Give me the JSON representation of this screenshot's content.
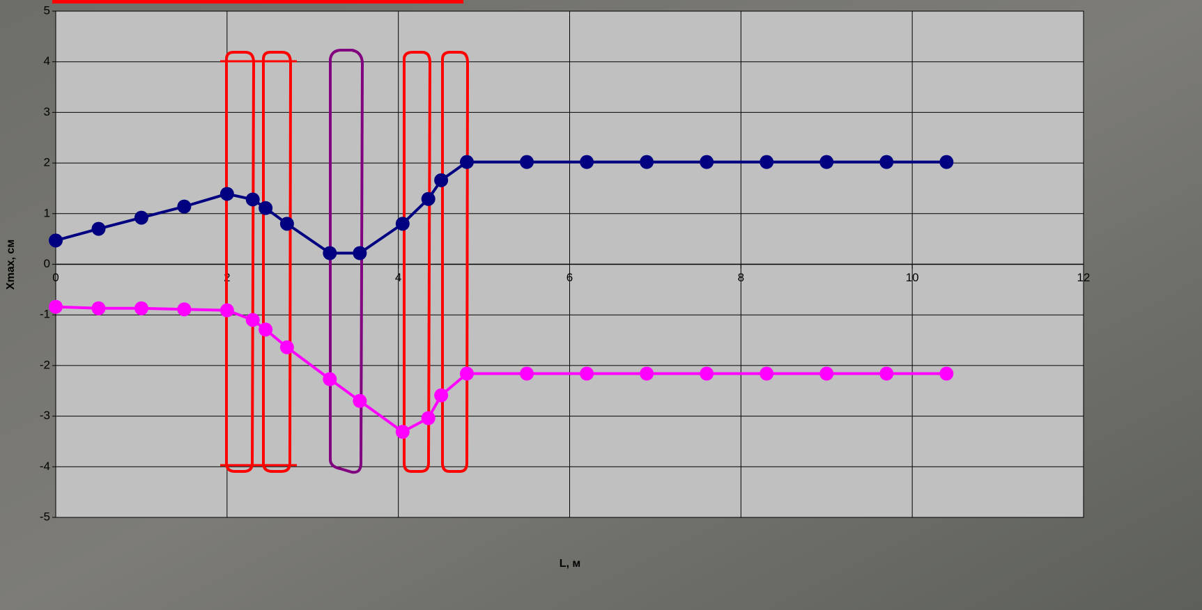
{
  "chart_data": {
    "type": "line",
    "x_label": "L, м",
    "y_label": "Xmax, см",
    "x": [
      0,
      0.5,
      1.0,
      1.5,
      2.0,
      2.3,
      2.45,
      2.7,
      3.2,
      3.55,
      4.05,
      4.35,
      4.5,
      4.8,
      5.5,
      6.2,
      6.9,
      7.6,
      8.3,
      9.0,
      9.7,
      10.4
    ],
    "series": [
      {
        "color": "#000080",
        "values": [
          0.47,
          0.7,
          0.92,
          1.14,
          1.39,
          1.28,
          1.11,
          0.8,
          0.22,
          0.22,
          0.8,
          1.29,
          1.66,
          2.02,
          2.02,
          2.02,
          2.02,
          2.02,
          2.02,
          2.02,
          2.02,
          2.02
        ]
      },
      {
        "color": "#ff00ff",
        "values": [
          -0.84,
          -0.87,
          -0.87,
          -0.89,
          -0.91,
          -1.1,
          -1.29,
          -1.64,
          -2.27,
          -2.7,
          -3.31,
          -3.04,
          -2.59,
          -2.16,
          -2.16,
          -2.16,
          -2.16,
          -2.16,
          -2.16,
          -2.16,
          -2.16,
          -2.16
        ]
      }
    ],
    "xlim": [
      0,
      12
    ],
    "xticks": [
      0,
      2,
      4,
      6,
      8,
      10,
      12
    ],
    "ylim": [
      -5,
      5
    ],
    "yticks": [
      -5,
      -4,
      -3,
      -2,
      -1,
      0,
      1,
      2,
      3,
      4,
      5
    ],
    "grid": true
  }
}
